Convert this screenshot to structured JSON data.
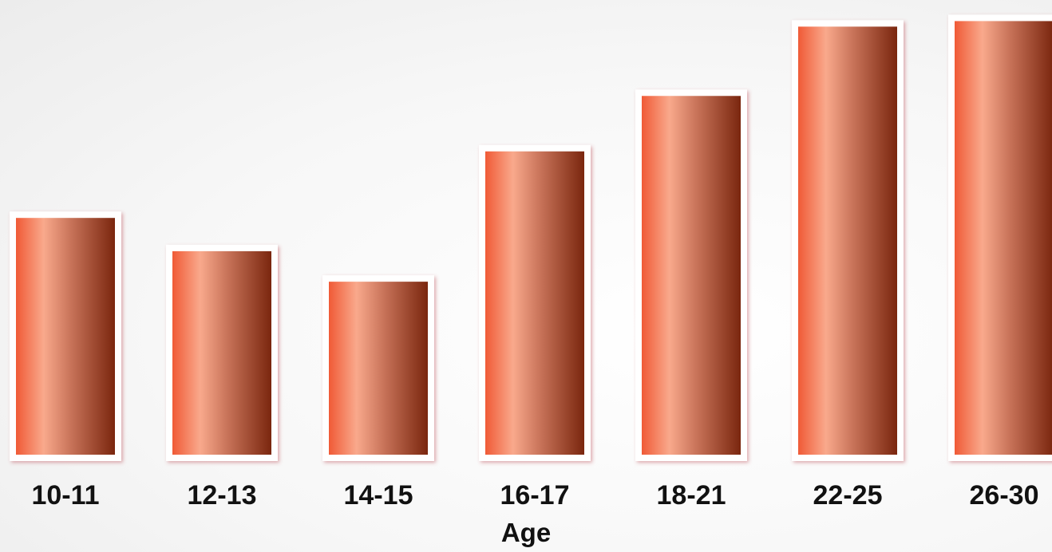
{
  "colors": {
    "bar_light": "#f9a98c",
    "bar_mid": "#f05a36",
    "bar_dark": "#7a260e",
    "bar_frame": "#ffffff",
    "text": "#111111"
  },
  "chart_data": {
    "type": "bar",
    "title": "",
    "xlabel": "Age",
    "ylabel": "",
    "categories": [
      "10-11",
      "12-13",
      "14-15",
      "16-17",
      "18-21",
      "22-25",
      "26-30"
    ],
    "values": [
      45,
      39,
      33.5,
      57,
      67,
      79.5,
      80.5
    ],
    "ylim": [
      0,
      82
    ],
    "grid": false,
    "legend": "none"
  }
}
